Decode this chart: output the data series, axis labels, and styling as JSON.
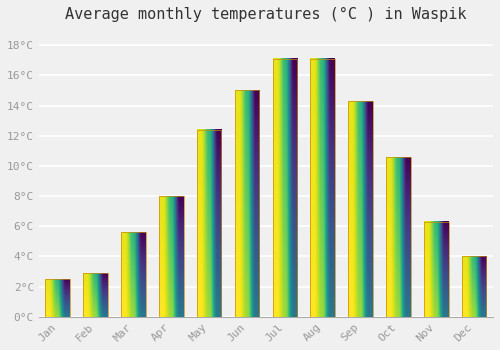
{
  "title": "Average monthly temperatures (°C ) in Waspik",
  "months": [
    "Jan",
    "Feb",
    "Mar",
    "Apr",
    "May",
    "Jun",
    "Jul",
    "Aug",
    "Sep",
    "Oct",
    "Nov",
    "Dec"
  ],
  "temperatures": [
    2.5,
    2.9,
    5.6,
    8.0,
    12.4,
    15.0,
    17.1,
    17.1,
    14.3,
    10.6,
    6.3,
    4.0
  ],
  "bar_color_top": "#F5A800",
  "bar_color_bottom": "#FFD966",
  "bar_border_color": "#C8890A",
  "background_color": "#f0f0f0",
  "grid_color": "#ffffff",
  "ylim": [
    0,
    19
  ],
  "yticks": [
    0,
    2,
    4,
    6,
    8,
    10,
    12,
    14,
    16,
    18
  ],
  "ytick_labels": [
    "0°C",
    "2°C",
    "4°C",
    "6°C",
    "8°C",
    "10°C",
    "12°C",
    "14°C",
    "16°C",
    "18°C"
  ],
  "tick_color": "#999999",
  "title_fontsize": 11,
  "label_fontsize": 8,
  "bar_width": 0.65
}
